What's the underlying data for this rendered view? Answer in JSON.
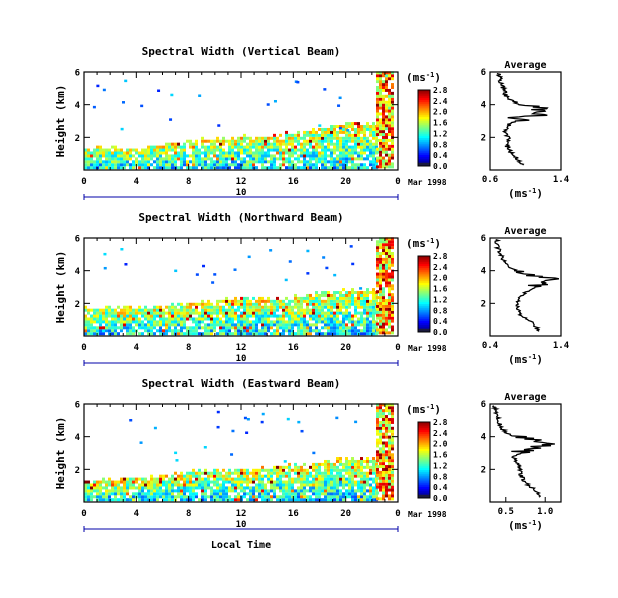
{
  "figure": {
    "date_label": "Mar 1998",
    "bottom_xlabel": "Local Time",
    "unit_label": "(ms",
    "unit_sup": "-1",
    "unit_close": ")"
  },
  "chart_data": [
    {
      "type": "heatmap",
      "title": "Spectral Width (Vertical Beam)",
      "ylabel": "Height (km)",
      "xlabel": "Local Time",
      "xticks": [
        "0",
        "4",
        "8",
        "12",
        "16",
        "20",
        "0"
      ],
      "date_tick": "10",
      "yticks": [
        "2",
        "4",
        "6"
      ],
      "xlim": [
        0,
        24
      ],
      "ylim": [
        0,
        6
      ],
      "colorbar": {
        "label": "(ms-1)",
        "ticks": [
          "0.0",
          "0.4",
          "0.8",
          "1.2",
          "1.6",
          "2.0",
          "2.4",
          "2.8"
        ]
      },
      "echo_top_km": [
        1.2,
        1.3,
        1.2,
        1.4,
        1.6,
        1.8,
        1.9,
        2.0,
        2.1,
        2.2,
        2.6,
        2.8,
        2.6
      ],
      "average_profile": {
        "title": "Average",
        "xlabel": "(ms-1)",
        "xticks": [
          "0.6",
          "1.4"
        ],
        "xlim": [
          0.6,
          1.4
        ],
        "yticks": [
          "2",
          "4",
          "6"
        ],
        "heights": [
          0.3,
          0.8,
          1.2,
          1.6,
          2.0,
          2.4,
          2.8,
          3.2,
          3.5,
          3.8,
          4.1,
          4.5,
          5.0,
          5.5,
          5.9
        ],
        "values": [
          0.95,
          0.9,
          0.82,
          0.78,
          0.8,
          0.78,
          0.82,
          0.95,
          1.25,
          1.1,
          0.9,
          0.78,
          0.75,
          0.72,
          0.7
        ]
      }
    },
    {
      "type": "heatmap",
      "title": "Spectral Width (Northward Beam)",
      "ylabel": "Height (km)",
      "xlabel": "Local Time",
      "xticks": [
        "0",
        "4",
        "8",
        "12",
        "16",
        "20",
        "0"
      ],
      "date_tick": "10",
      "yticks": [
        "2",
        "4",
        "6"
      ],
      "xlim": [
        0,
        24
      ],
      "ylim": [
        0,
        6
      ],
      "colorbar": {
        "label": "(ms-1)",
        "ticks": [
          "0.0",
          "0.4",
          "0.8",
          "1.2",
          "1.6",
          "2.0",
          "2.4",
          "2.8"
        ]
      },
      "echo_top_km": [
        1.6,
        1.7,
        1.6,
        1.8,
        1.9,
        2.0,
        2.2,
        2.3,
        2.2,
        2.4,
        2.6,
        2.8,
        2.7
      ],
      "average_profile": {
        "title": "Average",
        "xlabel": "(ms-1)",
        "xticks": [
          "0.4",
          "1.4"
        ],
        "xlim": [
          0.4,
          1.4
        ],
        "yticks": [
          "2",
          "4",
          "6"
        ],
        "heights": [
          0.3,
          0.8,
          1.2,
          1.6,
          2.0,
          2.4,
          2.8,
          3.2,
          3.5,
          3.8,
          4.1,
          4.5,
          5.0,
          5.5,
          5.9
        ],
        "values": [
          1.1,
          1.0,
          0.85,
          0.8,
          0.78,
          0.82,
          0.95,
          1.15,
          1.2,
          0.95,
          0.7,
          0.6,
          0.55,
          0.5,
          0.5
        ]
      }
    },
    {
      "type": "heatmap",
      "title": "Spectral Width (Eastward Beam)",
      "ylabel": "Height (km)",
      "xlabel": "Local Time",
      "xticks": [
        "0",
        "4",
        "8",
        "12",
        "16",
        "20",
        "0"
      ],
      "date_tick": "10",
      "yticks": [
        "2",
        "4",
        "6"
      ],
      "xlim": [
        0,
        24
      ],
      "ylim": [
        0,
        6
      ],
      "colorbar": {
        "label": "(ms-1)",
        "ticks": [
          "0.0",
          "0.4",
          "0.8",
          "1.2",
          "1.6",
          "2.0",
          "2.4",
          "2.8"
        ]
      },
      "echo_top_km": [
        1.2,
        1.3,
        1.4,
        1.5,
        1.7,
        1.9,
        1.9,
        2.0,
        2.1,
        2.2,
        2.4,
        2.6,
        2.5
      ],
      "average_profile": {
        "title": "Average",
        "xlabel": "(ms-1)",
        "xticks": [
          "0.5",
          "1.0"
        ],
        "xlim": [
          0.3,
          1.2
        ],
        "yticks": [
          "2",
          "4",
          "6"
        ],
        "heights": [
          0.3,
          0.8,
          1.2,
          1.6,
          2.0,
          2.4,
          2.8,
          3.2,
          3.5,
          3.8,
          4.1,
          4.5,
          5.0,
          5.5,
          5.9
        ],
        "values": [
          0.95,
          0.85,
          0.75,
          0.7,
          0.68,
          0.65,
          0.6,
          0.75,
          1.0,
          0.85,
          0.55,
          0.45,
          0.4,
          0.38,
          0.35
        ]
      }
    }
  ]
}
